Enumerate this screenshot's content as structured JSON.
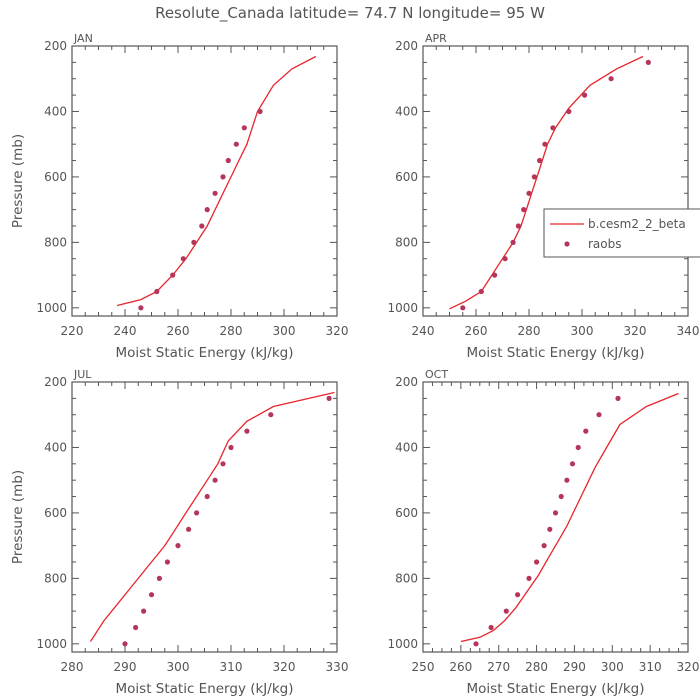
{
  "title": "Resolute_Canada  latitude= 74.7 N longitude= 95 W",
  "legend": {
    "model_label": "b.cesm2_2_beta",
    "obs_label": "raobs",
    "model_color": "#e8252d",
    "obs_color": "#b5365a",
    "placement": "inside-right of APR panel, clipped at image edge"
  },
  "chart_data": [
    {
      "type": "line",
      "panel": "JAN",
      "xlabel": "Moist Static Energy (kJ/kg)",
      "ylabel": "Pressure (mb)",
      "xlim": [
        220,
        320
      ],
      "ylim": [
        1025,
        200
      ],
      "xticks": [
        220,
        240,
        260,
        280,
        300,
        320
      ],
      "yticks": [
        200,
        400,
        600,
        800,
        1000
      ],
      "model": {
        "name": "b.cesm2_2_beta",
        "x": [
          237,
          246,
          252,
          258,
          263,
          267,
          271,
          274,
          277,
          280,
          283,
          286,
          290,
          296,
          303,
          312
        ],
        "y": [
          993,
          975,
          950,
          900,
          850,
          800,
          750,
          700,
          650,
          600,
          550,
          500,
          400,
          320,
          270,
          232
        ]
      },
      "obs": {
        "name": "raobs",
        "x": [
          246,
          252,
          258,
          262,
          266,
          269,
          271,
          274,
          277,
          279,
          282,
          285,
          291
        ],
        "y": [
          1000,
          950,
          900,
          850,
          800,
          750,
          700,
          650,
          600,
          550,
          500,
          450,
          400
        ]
      }
    },
    {
      "type": "line",
      "panel": "APR",
      "xlabel": "Moist Static Energy (kJ/kg)",
      "ylabel": "",
      "xlim": [
        240,
        340
      ],
      "ylim": [
        1025,
        200
      ],
      "xticks": [
        240,
        260,
        280,
        300,
        320,
        340
      ],
      "yticks": [
        200,
        400,
        600,
        800,
        1000
      ],
      "model": {
        "name": "b.cesm2_2_beta",
        "x": [
          250,
          256,
          262,
          266,
          270,
          274,
          277,
          279,
          281,
          283,
          285,
          287,
          290,
          295,
          303,
          313,
          323
        ],
        "y": [
          1003,
          980,
          950,
          900,
          850,
          800,
          750,
          700,
          650,
          600,
          550,
          500,
          450,
          390,
          320,
          270,
          232
        ]
      },
      "obs": {
        "name": "raobs",
        "x": [
          255,
          262,
          267,
          271,
          274,
          276,
          278,
          280,
          282,
          284,
          286,
          289,
          295,
          301,
          311,
          325
        ],
        "y": [
          1000,
          950,
          900,
          850,
          800,
          750,
          700,
          650,
          600,
          550,
          500,
          450,
          400,
          350,
          300,
          250
        ]
      }
    },
    {
      "type": "line",
      "panel": "JUL",
      "xlabel": "Moist Static Energy (kJ/kg)",
      "ylabel": "Pressure (mb)",
      "xlim": [
        280,
        330
      ],
      "ylim": [
        1025,
        200
      ],
      "xticks": [
        280,
        290,
        300,
        310,
        320,
        330
      ],
      "yticks": [
        200,
        400,
        600,
        800,
        1000
      ],
      "model": {
        "name": "b.cesm2_2_beta",
        "x": [
          283.5,
          286,
          289,
          292,
          295,
          297.5,
          299.5,
          301.5,
          303.5,
          305.5,
          307.5,
          309.5,
          313,
          318,
          329.5
        ],
        "y": [
          993,
          930,
          870,
          810,
          750,
          700,
          650,
          600,
          550,
          500,
          450,
          380,
          320,
          275,
          232
        ]
      },
      "obs": {
        "name": "raobs",
        "x": [
          290,
          292,
          293.5,
          295,
          296.5,
          298,
          300,
          302,
          303.5,
          305.5,
          307,
          308.5,
          310,
          313,
          317.5,
          328.5
        ],
        "y": [
          1000,
          950,
          900,
          850,
          800,
          750,
          700,
          650,
          600,
          550,
          500,
          450,
          400,
          350,
          300,
          250
        ]
      }
    },
    {
      "type": "line",
      "panel": "OCT",
      "xlabel": "Moist Static Energy (kJ/kg)",
      "ylabel": "",
      "xlim": [
        250,
        320
      ],
      "ylim": [
        1025,
        200
      ],
      "xticks": [
        250,
        260,
        270,
        280,
        290,
        300,
        310,
        320
      ],
      "yticks": [
        200,
        400,
        600,
        800,
        1000
      ],
      "model": {
        "name": "b.cesm2_2_beta",
        "x": [
          260,
          265,
          268.5,
          271.5,
          274.5,
          277.5,
          280.5,
          283,
          285.5,
          288,
          290.5,
          293,
          295.5,
          298.5,
          302,
          309,
          317.5
        ],
        "y": [
          993,
          980,
          960,
          930,
          890,
          840,
          790,
          740,
          690,
          640,
          580,
          520,
          460,
          400,
          330,
          275,
          235
        ]
      },
      "obs": {
        "name": "raobs",
        "x": [
          264,
          268,
          272,
          275,
          278,
          280,
          282,
          283.5,
          285,
          286.5,
          288,
          289.5,
          291,
          293,
          296.5,
          301.5
        ],
        "y": [
          1000,
          950,
          900,
          850,
          800,
          750,
          700,
          650,
          600,
          550,
          500,
          450,
          400,
          350,
          300,
          250
        ]
      }
    }
  ]
}
